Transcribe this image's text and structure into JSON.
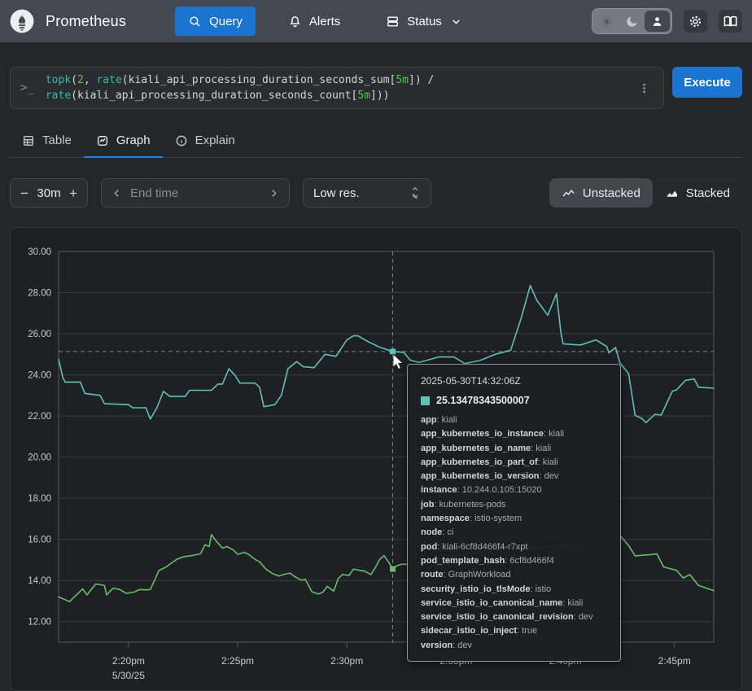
{
  "navbar": {
    "brand": "Prometheus",
    "items": [
      {
        "label": "Query",
        "icon": "search-icon"
      },
      {
        "label": "Alerts",
        "icon": "bell-icon"
      },
      {
        "label": "Status",
        "icon": "server-icon"
      }
    ]
  },
  "query": {
    "tokens": [
      [
        "fn",
        "topk"
      ],
      [
        "p",
        "("
      ],
      [
        "n",
        "2"
      ],
      [
        "p",
        ", "
      ],
      [
        "fn",
        "rate"
      ],
      [
        "p",
        "("
      ],
      [
        "id",
        "kiali_api_processing_duration_seconds_sum"
      ],
      [
        "p",
        "["
      ],
      [
        "n",
        "5m"
      ],
      [
        "p",
        "]) /"
      ],
      [
        "br",
        ""
      ],
      [
        "fn",
        "rate"
      ],
      [
        "p",
        "("
      ],
      [
        "id",
        "kiali_api_processing_duration_seconds_count"
      ],
      [
        "p",
        "["
      ],
      [
        "n",
        "5m"
      ],
      [
        "p",
        "]))"
      ]
    ],
    "execute_label": "Execute"
  },
  "tabs": [
    {
      "label": "Table",
      "icon": "table-icon"
    },
    {
      "label": "Graph",
      "icon": "graph-icon"
    },
    {
      "label": "Explain",
      "icon": "info-icon"
    }
  ],
  "controls": {
    "minus": "−",
    "plus": "+",
    "duration": "30m",
    "end_time_placeholder": "End time",
    "resolution": "Low res.",
    "unstacked_label": "Unstacked",
    "stacked_label": "Stacked"
  },
  "chart_data": {
    "type": "line",
    "x_unit": "minutes after 2:00pm on 5/30/25",
    "x_domain": [
      16.8,
      46.8
    ],
    "y_domain": [
      11.0,
      30.0
    ],
    "grid": true,
    "y_ticks": [
      {
        "v": 30,
        "label": "30.00"
      },
      {
        "v": 28,
        "label": "28.00"
      },
      {
        "v": 26,
        "label": "26.00"
      },
      {
        "v": 24,
        "label": "24.00"
      },
      {
        "v": 22,
        "label": "22.00"
      },
      {
        "v": 20,
        "label": "20.00"
      },
      {
        "v": 18,
        "label": "18.00"
      },
      {
        "v": 16,
        "label": "16.00"
      },
      {
        "v": 14,
        "label": "14.00"
      },
      {
        "v": 12,
        "label": "12.00"
      }
    ],
    "x_ticks": [
      {
        "v": 20,
        "label": "2:20pm",
        "sublabel": "5/30/25"
      },
      {
        "v": 25,
        "label": "2:25pm"
      },
      {
        "v": 30,
        "label": "2:30pm"
      },
      {
        "v": 35,
        "label": "2:35pm"
      },
      {
        "v": 40,
        "label": "2:40pm"
      },
      {
        "v": 45,
        "label": "2:45pm"
      }
    ],
    "series": [
      {
        "color": "#5fc2b8",
        "points": [
          [
            16.8,
            24.75
          ],
          [
            17.0,
            23.85
          ],
          [
            17.1,
            23.65
          ],
          [
            17.8,
            23.65
          ],
          [
            18.0,
            23.1
          ],
          [
            18.7,
            23.0
          ],
          [
            18.9,
            22.6
          ],
          [
            20.0,
            22.55
          ],
          [
            20.2,
            22.4
          ],
          [
            20.8,
            22.4
          ],
          [
            21.0,
            21.85
          ],
          [
            21.3,
            22.4
          ],
          [
            21.6,
            23.2
          ],
          [
            21.9,
            22.95
          ],
          [
            22.6,
            22.95
          ],
          [
            22.8,
            23.25
          ],
          [
            23.8,
            23.25
          ],
          [
            24.1,
            23.55
          ],
          [
            24.3,
            23.55
          ],
          [
            24.6,
            24.3
          ],
          [
            24.9,
            23.95
          ],
          [
            25.1,
            23.6
          ],
          [
            25.8,
            23.6
          ],
          [
            26.0,
            23.4
          ],
          [
            26.2,
            22.45
          ],
          [
            26.7,
            22.55
          ],
          [
            27.0,
            23.0
          ],
          [
            27.3,
            24.3
          ],
          [
            27.7,
            24.65
          ],
          [
            28.0,
            24.4
          ],
          [
            28.5,
            24.35
          ],
          [
            29.0,
            25.0
          ],
          [
            29.5,
            24.9
          ],
          [
            30.0,
            25.7
          ],
          [
            30.3,
            25.9
          ],
          [
            30.5,
            25.9
          ],
          [
            31.0,
            25.6
          ],
          [
            31.5,
            25.35
          ],
          [
            32.1,
            25.13
          ],
          [
            32.6,
            25.1
          ],
          [
            32.9,
            24.72
          ],
          [
            33.3,
            24.6
          ],
          [
            34.2,
            24.87
          ],
          [
            34.9,
            24.87
          ],
          [
            35.4,
            24.55
          ],
          [
            36.1,
            24.7
          ],
          [
            36.8,
            25.0
          ],
          [
            37.5,
            25.2
          ],
          [
            38.0,
            26.83
          ],
          [
            38.4,
            28.35
          ],
          [
            38.7,
            27.62
          ],
          [
            39.2,
            26.9
          ],
          [
            39.6,
            27.95
          ],
          [
            39.8,
            26.04
          ],
          [
            39.9,
            25.51
          ],
          [
            40.7,
            25.45
          ],
          [
            41.4,
            25.7
          ],
          [
            41.9,
            25.38
          ],
          [
            42.0,
            25.07
          ],
          [
            42.3,
            25.33
          ],
          [
            42.5,
            24.59
          ],
          [
            42.9,
            24.06
          ],
          [
            43.2,
            22.03
          ],
          [
            43.5,
            21.88
          ],
          [
            43.7,
            21.68
          ],
          [
            44.1,
            22.08
          ],
          [
            44.4,
            22.05
          ],
          [
            44.9,
            23.2
          ],
          [
            45.1,
            23.27
          ],
          [
            45.5,
            23.73
          ],
          [
            45.9,
            23.8
          ],
          [
            46.1,
            23.4
          ],
          [
            46.8,
            23.35
          ]
        ]
      },
      {
        "color": "#68bd6b",
        "points": [
          [
            16.8,
            13.2
          ],
          [
            17.3,
            12.97
          ],
          [
            17.9,
            13.59
          ],
          [
            18.1,
            13.3
          ],
          [
            18.5,
            13.83
          ],
          [
            18.9,
            13.76
          ],
          [
            19.0,
            13.3
          ],
          [
            19.3,
            13.63
          ],
          [
            19.6,
            13.56
          ],
          [
            19.9,
            13.37
          ],
          [
            20.3,
            13.45
          ],
          [
            20.5,
            13.56
          ],
          [
            20.8,
            13.54
          ],
          [
            21.0,
            13.56
          ],
          [
            21.4,
            14.49
          ],
          [
            21.7,
            14.64
          ],
          [
            22.2,
            15.02
          ],
          [
            22.5,
            15.15
          ],
          [
            22.9,
            15.21
          ],
          [
            23.3,
            15.3
          ],
          [
            23.5,
            15.74
          ],
          [
            23.7,
            15.65
          ],
          [
            23.8,
            16.23
          ],
          [
            24.0,
            15.94
          ],
          [
            24.3,
            15.57
          ],
          [
            24.5,
            15.65
          ],
          [
            24.8,
            15.48
          ],
          [
            25.0,
            15.27
          ],
          [
            25.3,
            15.37
          ],
          [
            25.5,
            15.27
          ],
          [
            25.8,
            15.02
          ],
          [
            26.0,
            14.91
          ],
          [
            26.3,
            14.55
          ],
          [
            26.6,
            14.33
          ],
          [
            26.9,
            14.22
          ],
          [
            27.1,
            14.29
          ],
          [
            27.4,
            14.36
          ],
          [
            27.6,
            14.2
          ],
          [
            27.9,
            14.02
          ],
          [
            28.1,
            14.05
          ],
          [
            28.4,
            13.45
          ],
          [
            28.7,
            13.34
          ],
          [
            28.9,
            13.43
          ],
          [
            29.1,
            13.72
          ],
          [
            29.4,
            13.48
          ],
          [
            29.6,
            14.09
          ],
          [
            29.8,
            14.29
          ],
          [
            30.1,
            14.25
          ],
          [
            30.3,
            14.55
          ],
          [
            30.6,
            14.49
          ],
          [
            30.8,
            14.46
          ],
          [
            31.1,
            14.29
          ],
          [
            31.3,
            14.62
          ],
          [
            31.5,
            15.02
          ],
          [
            31.7,
            15.21
          ],
          [
            31.9,
            14.91
          ],
          [
            32.1,
            14.56
          ],
          [
            32.3,
            14.72
          ],
          [
            32.5,
            14.79
          ],
          [
            32.7,
            14.79
          ],
          [
            33.5,
            14.9
          ],
          [
            34.5,
            15.1
          ],
          [
            35.5,
            15.3
          ],
          [
            36.5,
            15.45
          ],
          [
            37.5,
            15.55
          ],
          [
            38.5,
            15.6
          ],
          [
            39.5,
            15.65
          ],
          [
            40.5,
            15.7
          ],
          [
            41.3,
            15.6
          ],
          [
            42.0,
            15.8
          ],
          [
            42.5,
            16.2
          ],
          [
            42.9,
            15.7
          ],
          [
            43.2,
            15.2
          ],
          [
            43.9,
            15.26
          ],
          [
            44.2,
            15.3
          ],
          [
            44.5,
            14.66
          ],
          [
            45.1,
            14.49
          ],
          [
            45.4,
            14.12
          ],
          [
            45.7,
            14.29
          ],
          [
            46.1,
            13.76
          ],
          [
            46.8,
            13.5
          ]
        ]
      }
    ],
    "hover": {
      "x": 32.1,
      "y": 25.1347834,
      "y2": 14.56,
      "dash_color": "#7ca7b2"
    }
  },
  "tooltip": {
    "time": "2025-05-30T14:32:06Z",
    "swatch_color": "#5fc2b8",
    "value": "25.13478343500007",
    "labels": [
      [
        "app",
        "kiali"
      ],
      [
        "app_kubernetes_io_instance",
        "kiali"
      ],
      [
        "app_kubernetes_io_name",
        "kiali"
      ],
      [
        "app_kubernetes_io_part_of",
        "kiali"
      ],
      [
        "app_kubernetes_io_version",
        "dev"
      ],
      [
        "instance",
        "10.244.0.105:15020"
      ],
      [
        "job",
        "kubernetes-pods"
      ],
      [
        "namespace",
        "istio-system"
      ],
      [
        "node",
        "ci"
      ],
      [
        "pod",
        "kiali-6cf8d466f4-r7xpt"
      ],
      [
        "pod_template_hash",
        "6cf8d466f4"
      ],
      [
        "route",
        "GraphWorkload"
      ],
      [
        "security_istio_io_tlsMode",
        "istio"
      ],
      [
        "service_istio_io_canonical_name",
        "kiali"
      ],
      [
        "service_istio_io_canonical_revision",
        "dev"
      ],
      [
        "sidecar_istio_io_inject",
        "true"
      ],
      [
        "version",
        "dev"
      ]
    ]
  },
  "colors": {
    "accent_blue": "#1b74cf",
    "navbar_bg": "#424950",
    "series_teal": "#5fc2b8",
    "series_green": "#68bd6b"
  }
}
